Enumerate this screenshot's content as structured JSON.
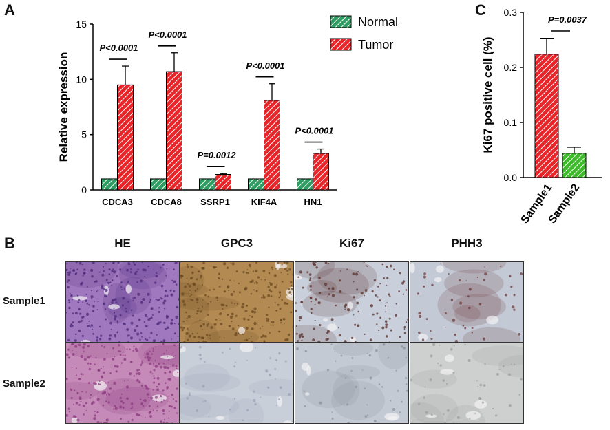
{
  "panels": {
    "a": "A",
    "b": "B",
    "c": "C"
  },
  "chart_data": [
    {
      "type": "bar",
      "panel": "A",
      "categories": [
        "CDCA3",
        "CDCA8",
        "SSRP1",
        "KIF4A",
        "HN1"
      ],
      "series": [
        {
          "name": "Normal",
          "values": [
            1,
            1,
            1,
            1,
            1
          ],
          "color": "#2e9e63",
          "pattern": "hatched"
        },
        {
          "name": "Tumor",
          "values": [
            9.5,
            10.7,
            1.4,
            8.1,
            3.3
          ],
          "errors": [
            1.7,
            1.7,
            0.08,
            1.5,
            0.4
          ],
          "color": "#e8262a",
          "pattern": "hatched"
        }
      ],
      "pvalues": [
        "P<0.0001",
        "P<0.0001",
        "P=0.0012",
        "P<0.0001",
        "P<0.0001"
      ],
      "ylabel": "Relative expression",
      "ylim": [
        0,
        15
      ],
      "yticks": [
        0,
        5,
        10,
        15
      ],
      "legend": "top-right"
    },
    {
      "type": "bar",
      "panel": "C",
      "categories": [
        "Sample1",
        "Sample2"
      ],
      "values": [
        0.224,
        0.044
      ],
      "errors": [
        0.029,
        0.011
      ],
      "colors": [
        "#e8262a",
        "#3dbb2a"
      ],
      "pvalue": "P=0.0037",
      "ylabel": "Ki67 positive cell (%)",
      "ylim": [
        0,
        0.3
      ],
      "yticks": [
        "0.0",
        "0.1",
        "0.2",
        "0.3"
      ]
    }
  ],
  "micrographs": {
    "columns": [
      "HE",
      "GPC3",
      "Ki67",
      "PHH3"
    ],
    "rows": [
      "Sample1",
      "Sample2"
    ],
    "tiles": [
      {
        "name": "he-sample1",
        "bg": "#a078bf",
        "dots": "#4b2a7a",
        "density": "high"
      },
      {
        "name": "gpc3-sample1",
        "bg": "#b28a52",
        "dots": "#6b4a22",
        "density": "high"
      },
      {
        "name": "ki67-sample1",
        "bg": "#c9d0db",
        "dots": "#5a2f2a",
        "density": "medium"
      },
      {
        "name": "phh3-sample1",
        "bg": "#c3cad6",
        "dots": "#6e3a3a",
        "density": "low"
      },
      {
        "name": "he-sample2",
        "bg": "#c58ab8",
        "dots": "#8b3a7f",
        "density": "high"
      },
      {
        "name": "gpc3-sample2",
        "bg": "#c8cfd9",
        "dots": "#9aa3b3",
        "density": "low"
      },
      {
        "name": "ki67-sample2",
        "bg": "#c4cad3",
        "dots": "#8c929d",
        "density": "low"
      },
      {
        "name": "phh3-sample2",
        "bg": "#cdd0cf",
        "dots": "#9a9d9c",
        "density": "low"
      }
    ]
  }
}
